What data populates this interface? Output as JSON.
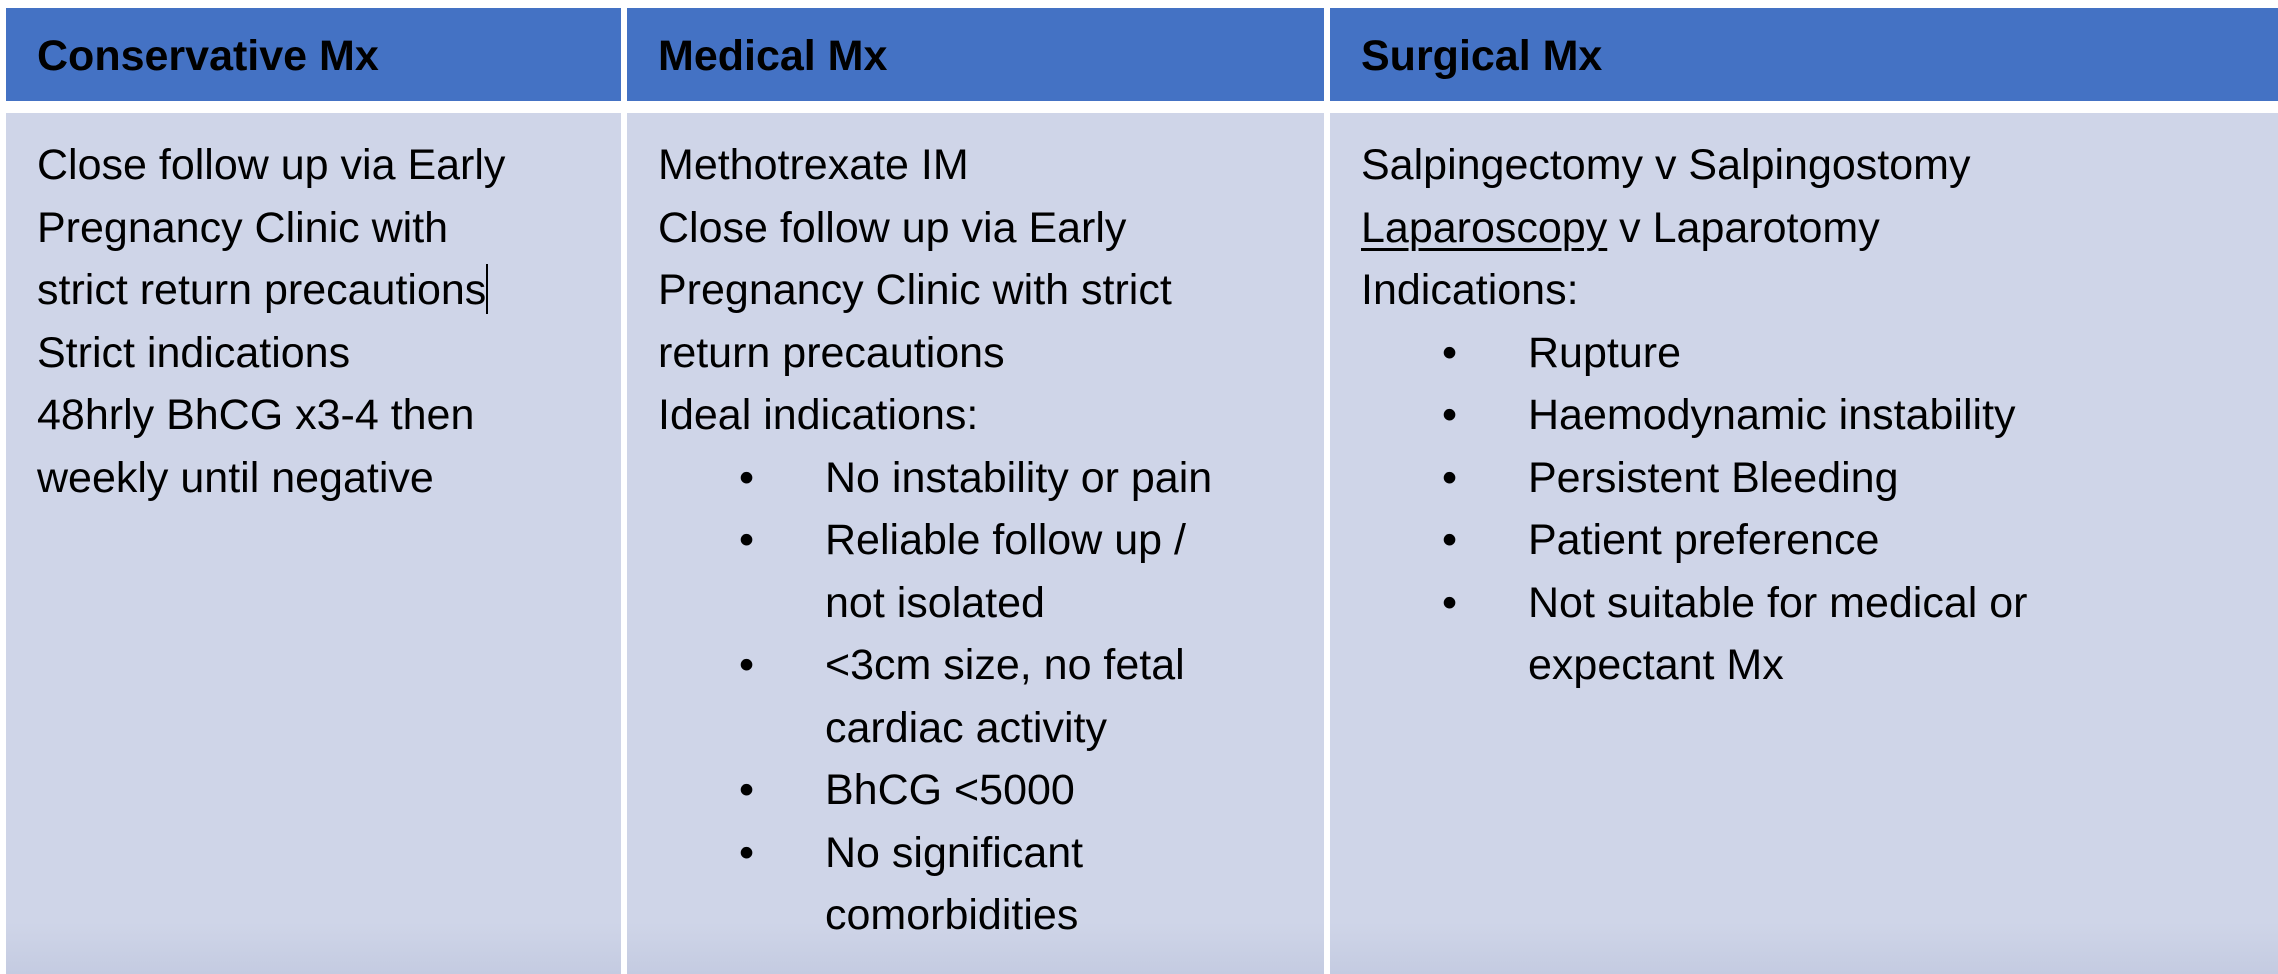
{
  "headers": {
    "conservative": "Conservative Mx",
    "medical": "Medical Mx",
    "surgical": "Surgical Mx"
  },
  "conservative": {
    "lines": [
      "Close follow up via Early",
      "Pregnancy Clinic with",
      "strict return precautions",
      "Strict indications",
      "48hrly BhCG x3-4 then",
      "weekly until negative"
    ]
  },
  "medical": {
    "lines": [
      "Methotrexate IM",
      "Close follow up via Early",
      "Pregnancy Clinic with strict",
      "return precautions",
      "Ideal indications:"
    ],
    "bullets": [
      "No instability or pain",
      "Reliable follow up /\nnot isolated",
      "<3cm size, no fetal\ncardiac activity",
      "BhCG <5000",
      "No significant\ncomorbidities"
    ]
  },
  "surgical": {
    "line1": "Salpingectomy v Salpingostomy",
    "line2_underlined": "Laparoscopy",
    "line2_rest": " v Laparotomy",
    "line3": "Indications:",
    "bullets": [
      "Rupture",
      "Haemodynamic instability",
      "Persistent Bleeding",
      "Patient preference",
      "Not suitable for medical or\nexpectant Mx"
    ]
  },
  "bullet_symbol": "•"
}
